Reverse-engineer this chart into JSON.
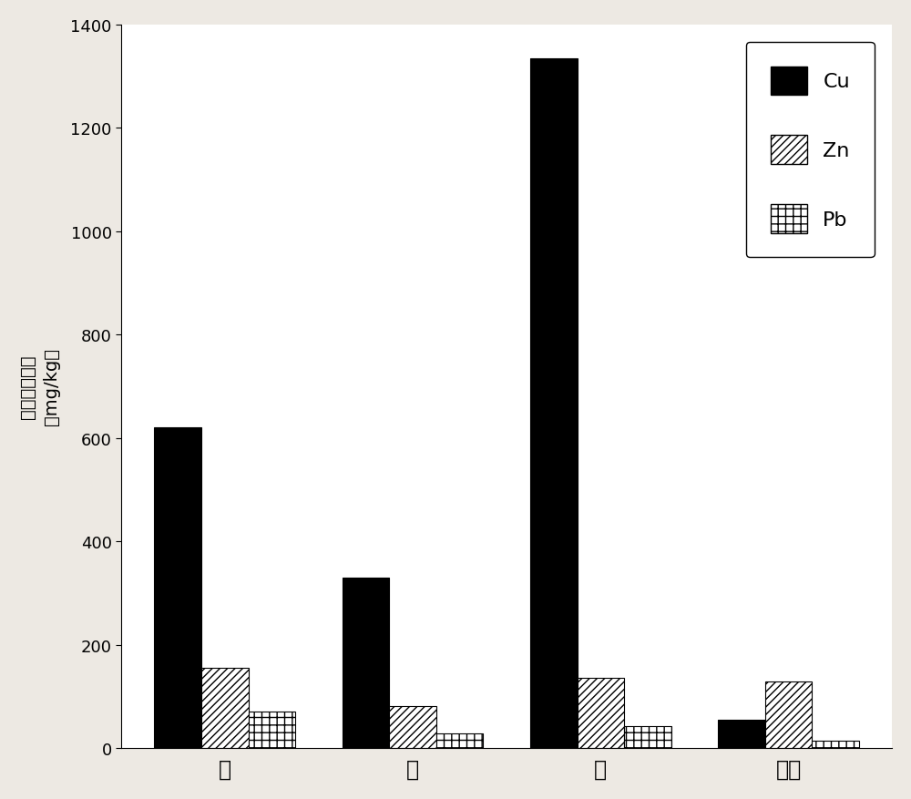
{
  "categories": [
    "根",
    "茎",
    "叶",
    "果实"
  ],
  "series": {
    "Cu": [
      620,
      330,
      1335,
      55
    ],
    "Zn": [
      155,
      82,
      135,
      128
    ],
    "Pb": [
      70,
      28,
      42,
      15
    ]
  },
  "ylabel_parts": [
    "重金属的含量",
    "（mg/kg）"
  ],
  "ylim": [
    0,
    1400
  ],
  "yticks": [
    0,
    200,
    400,
    600,
    800,
    1000,
    1200,
    1400
  ],
  "legend_labels": [
    "Cu",
    "Zn",
    "Pb"
  ],
  "bar_width": 0.25,
  "background_color": "#ede9e3",
  "plot_bg_color": "#ffffff"
}
